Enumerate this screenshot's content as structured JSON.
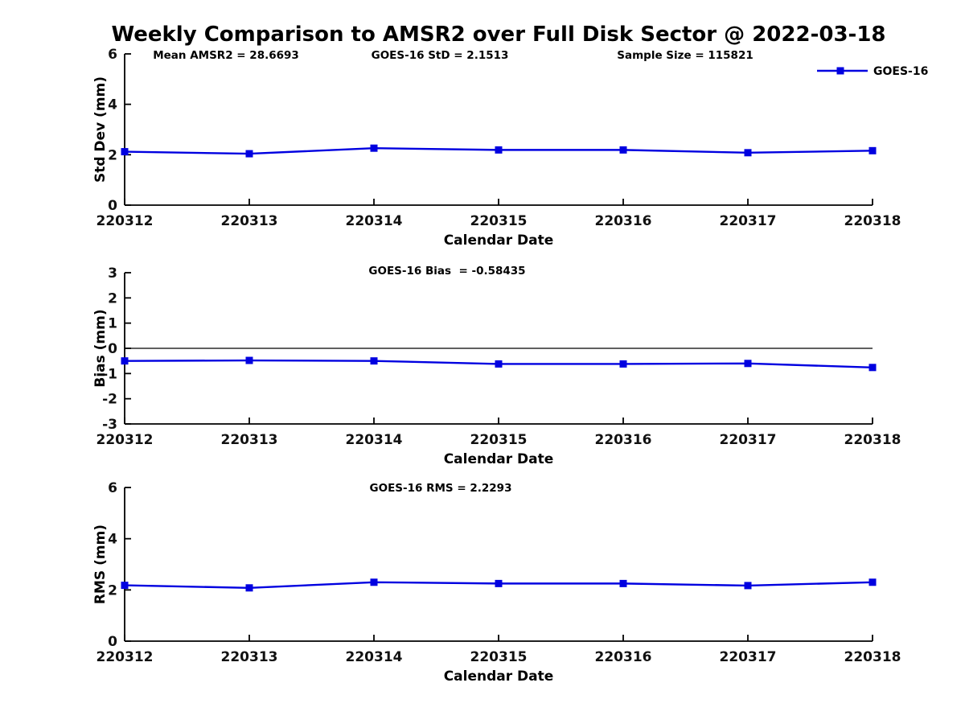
{
  "title": "Weekly Comparison to AMSR2 over Full Disk Sector @ 2022-03-18",
  "accent_color": "#0000e0",
  "axis_color": "#000000",
  "legend": {
    "label": "GOES-16"
  },
  "chart_data": [
    {
      "type": "line",
      "ylabel": "Std Dev (mm)",
      "xlabel": "Calendar Date",
      "ylim": [
        0,
        6
      ],
      "yticks": [
        0,
        2,
        4,
        6
      ],
      "categories": [
        "220312",
        "220313",
        "220314",
        "220315",
        "220316",
        "220317",
        "220318"
      ],
      "series": [
        {
          "name": "GOES-16",
          "values": [
            2.12,
            2.04,
            2.26,
            2.19,
            2.19,
            2.08,
            2.16
          ]
        }
      ],
      "annotations": [
        "Mean AMSR2 = 28.6693",
        "GOES-16 StD = 2.1513",
        "Sample Size = 115821"
      ],
      "zero_line": false,
      "legend_position": "top-right",
      "grid": false
    },
    {
      "type": "line",
      "ylabel": "Bias (mm)",
      "xlabel": "Calendar Date",
      "ylim": [
        -3,
        3
      ],
      "yticks": [
        -3,
        -2,
        -1,
        0,
        1,
        2,
        3
      ],
      "categories": [
        "220312",
        "220313",
        "220314",
        "220315",
        "220316",
        "220317",
        "220318"
      ],
      "series": [
        {
          "name": "GOES-16",
          "values": [
            -0.5,
            -0.48,
            -0.5,
            -0.62,
            -0.62,
            -0.6,
            -0.76
          ]
        }
      ],
      "annotations": [
        "GOES-16 Bias  = -0.58435"
      ],
      "zero_line": true,
      "grid": false
    },
    {
      "type": "line",
      "ylabel": "RMS (mm)",
      "xlabel": "Calendar Date",
      "ylim": [
        0,
        6
      ],
      "yticks": [
        0,
        2,
        4,
        6
      ],
      "categories": [
        "220312",
        "220313",
        "220314",
        "220315",
        "220316",
        "220317",
        "220318"
      ],
      "series": [
        {
          "name": "GOES-16",
          "values": [
            2.18,
            2.08,
            2.3,
            2.25,
            2.25,
            2.17,
            2.3
          ]
        }
      ],
      "annotations": [
        "GOES-16 RMS = 2.2293"
      ],
      "zero_line": false,
      "grid": false
    }
  ]
}
